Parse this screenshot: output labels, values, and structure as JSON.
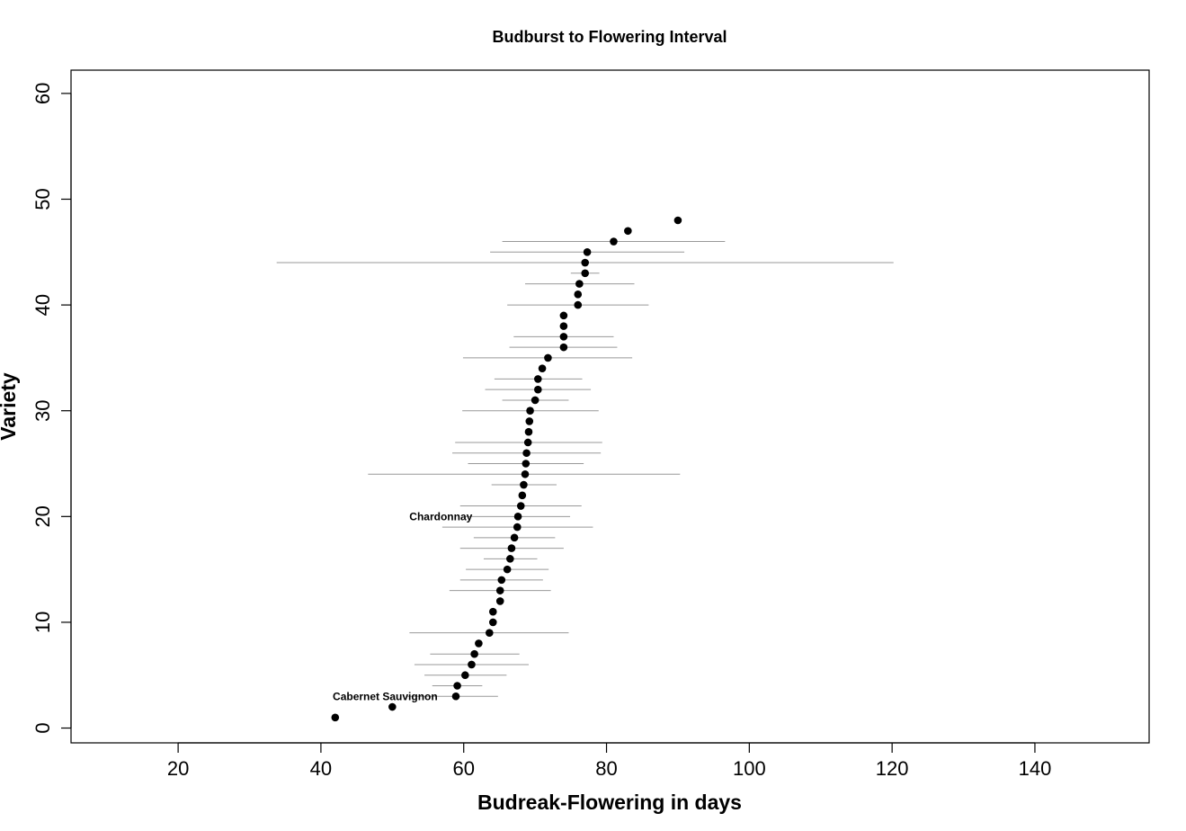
{
  "chart_data": {
    "type": "scatter",
    "title": "Budburst to Flowering Interval",
    "xlabel": "Budreak-Flowering in days",
    "ylabel": "Variety",
    "xlim": [
      5,
      156
    ],
    "ylim": [
      -1.4,
      62.2
    ],
    "x_ticks": [
      20,
      40,
      60,
      80,
      100,
      120,
      140
    ],
    "y_ticks": [
      0,
      10,
      20,
      30,
      40,
      50,
      60
    ],
    "grid": false,
    "legend": "none",
    "point_color": "#000000",
    "errorbar_color": "#999999",
    "points": [
      {
        "variety": 1,
        "mean": 42.0
      },
      {
        "variety": 2,
        "mean": 50.0
      },
      {
        "variety": 3,
        "mean": 58.9,
        "low": 52.0,
        "high": 64.8
      },
      {
        "variety": 4,
        "mean": 59.1,
        "low": 55.6,
        "high": 62.6
      },
      {
        "variety": 5,
        "mean": 60.2,
        "low": 54.5,
        "high": 66.0
      },
      {
        "variety": 6,
        "mean": 61.1,
        "low": 53.1,
        "high": 69.1
      },
      {
        "variety": 7,
        "mean": 61.5,
        "low": 55.3,
        "high": 67.8
      },
      {
        "variety": 8,
        "mean": 62.1
      },
      {
        "variety": 9,
        "mean": 63.6,
        "low": 52.4,
        "high": 74.7
      },
      {
        "variety": 10,
        "mean": 64.1
      },
      {
        "variety": 11,
        "mean": 64.1
      },
      {
        "variety": 12,
        "mean": 65.1
      },
      {
        "variety": 13,
        "mean": 65.1,
        "low": 58.0,
        "high": 72.2
      },
      {
        "variety": 14,
        "mean": 65.3,
        "low": 59.5,
        "high": 71.1
      },
      {
        "variety": 15,
        "mean": 66.1,
        "low": 60.3,
        "high": 71.9
      },
      {
        "variety": 16,
        "mean": 66.5,
        "low": 62.8,
        "high": 70.3
      },
      {
        "variety": 17,
        "mean": 66.7,
        "low": 59.5,
        "high": 74.0
      },
      {
        "variety": 18,
        "mean": 67.1,
        "low": 61.4,
        "high": 72.8
      },
      {
        "variety": 19,
        "mean": 67.5,
        "low": 57.0,
        "high": 78.1
      },
      {
        "variety": 20,
        "mean": 67.6,
        "low": 60.3,
        "high": 74.9
      },
      {
        "variety": 21,
        "mean": 68.0,
        "low": 59.5,
        "high": 76.5
      },
      {
        "variety": 22,
        "mean": 68.2
      },
      {
        "variety": 23,
        "mean": 68.4,
        "low": 63.9,
        "high": 73.0
      },
      {
        "variety": 24,
        "mean": 68.6,
        "low": 46.6,
        "high": 90.3
      },
      {
        "variety": 25,
        "mean": 68.7,
        "low": 60.6,
        "high": 76.8
      },
      {
        "variety": 26,
        "mean": 68.8,
        "low": 58.4,
        "high": 79.2
      },
      {
        "variety": 27,
        "mean": 69.0,
        "low": 58.8,
        "high": 79.4
      },
      {
        "variety": 28,
        "mean": 69.1
      },
      {
        "variety": 29,
        "mean": 69.2
      },
      {
        "variety": 30,
        "mean": 69.3,
        "low": 59.8,
        "high": 78.9
      },
      {
        "variety": 31,
        "mean": 70.0,
        "low": 65.4,
        "high": 74.7
      },
      {
        "variety": 32,
        "mean": 70.4,
        "low": 63.0,
        "high": 77.8
      },
      {
        "variety": 33,
        "mean": 70.4,
        "low": 64.3,
        "high": 76.6
      },
      {
        "variety": 34,
        "mean": 71.0
      },
      {
        "variety": 35,
        "mean": 71.8,
        "low": 59.9,
        "high": 83.6
      },
      {
        "variety": 36,
        "mean": 74.0,
        "low": 66.4,
        "high": 81.5
      },
      {
        "variety": 37,
        "mean": 74.0,
        "low": 67.0,
        "high": 81.0
      },
      {
        "variety": 38,
        "mean": 74.0
      },
      {
        "variety": 39,
        "mean": 74.0
      },
      {
        "variety": 40,
        "mean": 76.0,
        "low": 66.1,
        "high": 85.9
      },
      {
        "variety": 41,
        "mean": 76.0
      },
      {
        "variety": 42,
        "mean": 76.2,
        "low": 68.6,
        "high": 83.9
      },
      {
        "variety": 43,
        "mean": 77.0,
        "low": 75.0,
        "high": 79.0
      },
      {
        "variety": 44,
        "mean": 77.0,
        "low": 33.8,
        "high": 120.2
      },
      {
        "variety": 45,
        "mean": 77.3,
        "low": 63.7,
        "high": 90.9
      },
      {
        "variety": 46,
        "mean": 81.0,
        "low": 65.4,
        "high": 96.6
      },
      {
        "variety": 47,
        "mean": 83.0
      },
      {
        "variety": 48,
        "mean": 90.0
      }
    ],
    "annotations": [
      {
        "text": "Chardonnay",
        "x": 56.8,
        "y": 20
      },
      {
        "text": "Cabernet Sauvignon",
        "x": 49.0,
        "y": 3
      }
    ]
  }
}
